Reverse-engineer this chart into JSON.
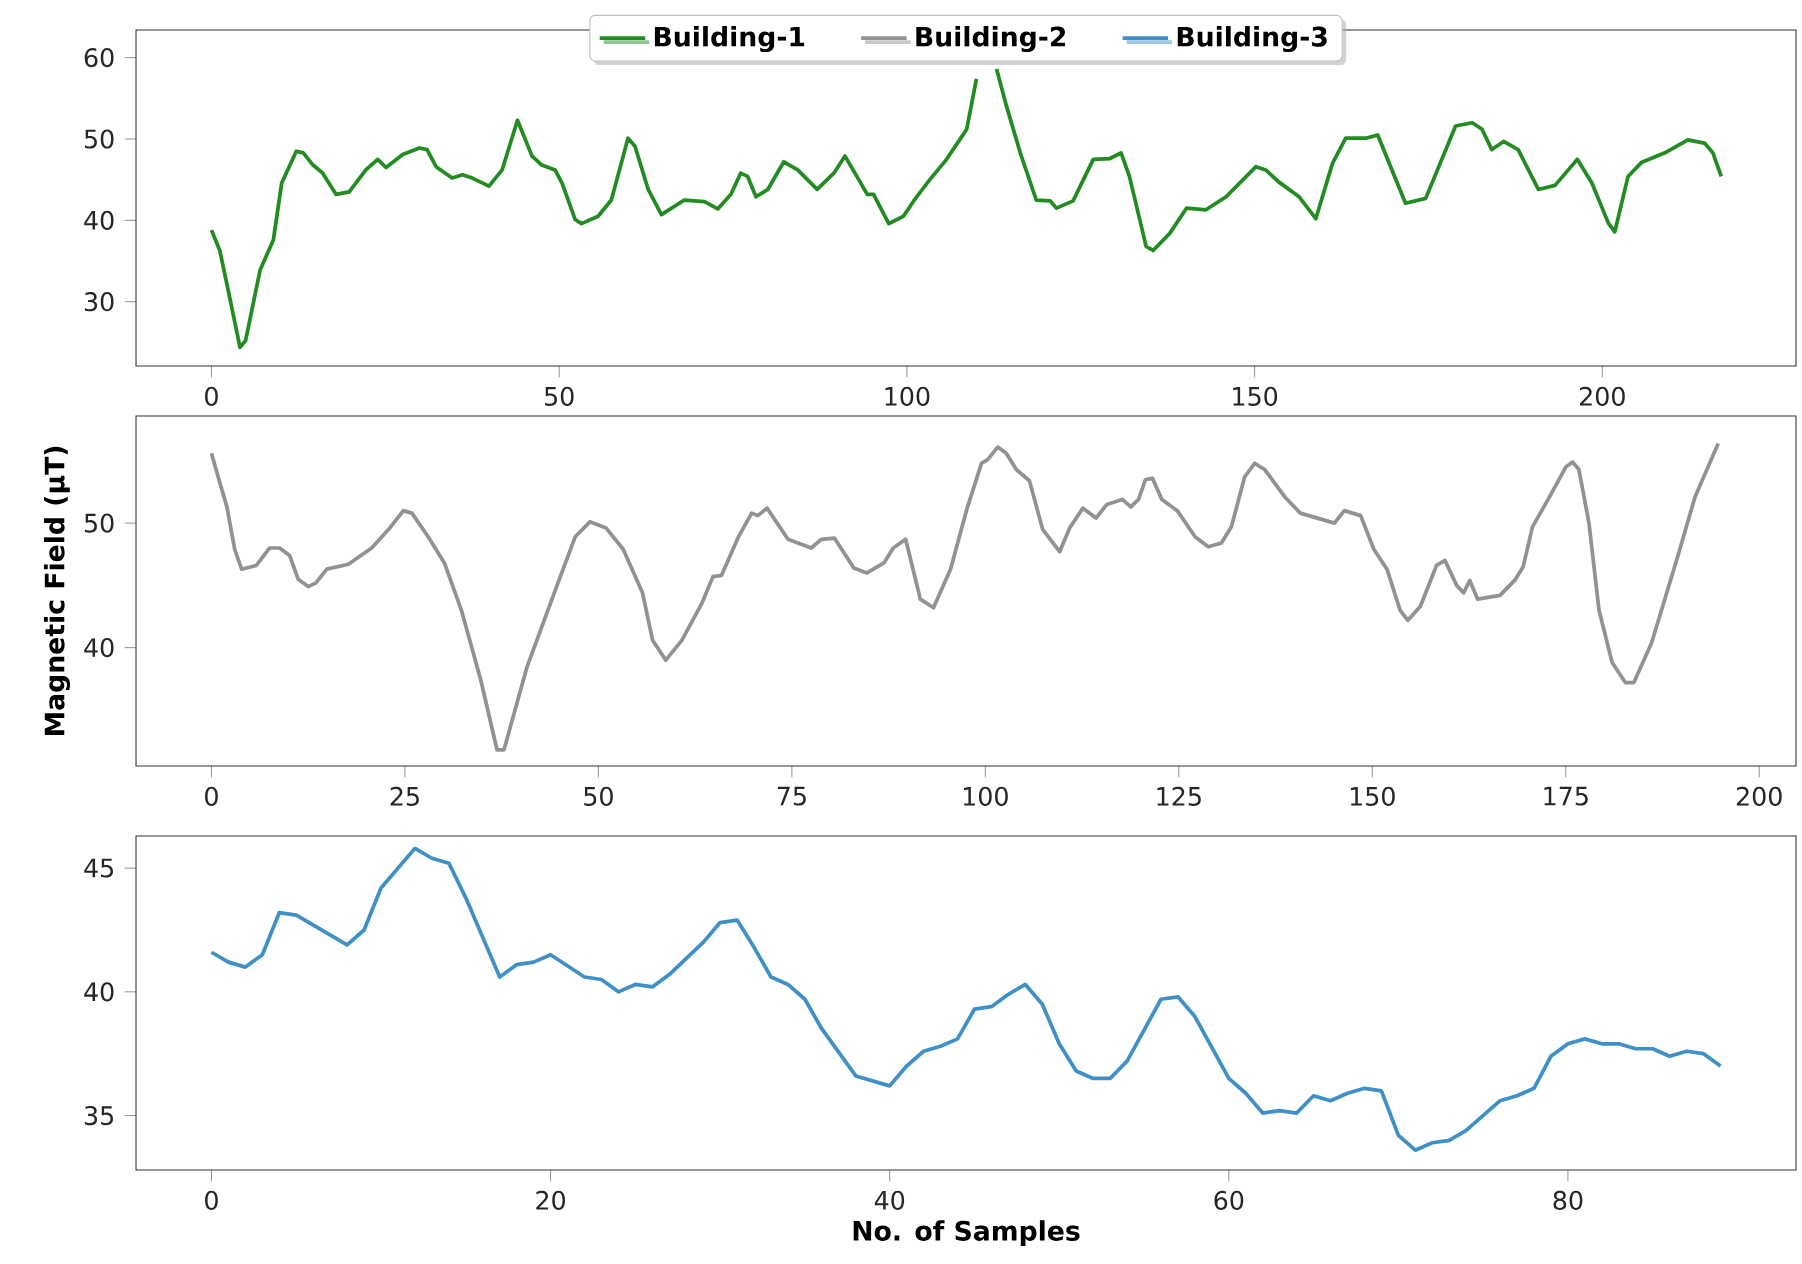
{
  "chart_data": [
    {
      "type": "line",
      "xlim": [
        -10.85,
        227.85
      ],
      "ylim": [
        22.1,
        63.4
      ],
      "xticks": [
        0,
        50,
        100,
        150,
        200
      ],
      "yticks": [
        30,
        40,
        50,
        60
      ],
      "legend": "top",
      "series": [
        {
          "name": "Building-1",
          "color": "#228b22",
          "x": [
            0,
            1.2,
            2.7,
            4.1,
            4.9,
            7,
            8.9,
            10.1,
            12.2,
            13.2,
            14.6,
            16,
            17.9,
            19.8,
            22.2,
            23.9,
            25.1,
            27.5,
            29.9,
            31,
            32.3,
            34.6,
            36.1,
            37.5,
            39.9,
            41.8,
            44,
            46.1,
            47.5,
            49.4,
            50.4,
            52.3,
            53.2,
            55.6,
            57.5,
            59.9,
            60.9,
            62.8,
            64.7,
            68,
            70.9,
            72.8,
            74.7,
            76.1,
            77.1,
            78.3,
            80,
            82.3,
            84.3,
            87.1,
            89.5,
            91.1,
            92.8,
            94.3,
            95.2,
            97.4,
            99.5,
            101.4,
            103.3,
            105.7,
            108.6,
            110,
            111.5,
            112.9,
            114.3,
            116.3,
            118.6,
            120.6,
            121.5,
            123.9,
            126.8,
            129.2,
            130.8,
            132,
            134.4,
            135.4,
            137.8,
            140.2,
            143,
            145.9,
            150.2,
            151.6,
            153.5,
            156.4,
            158.8,
            161.2,
            163.1,
            166,
            167.7,
            171.7,
            174.6,
            178.9,
            181.3,
            182.7,
            184.1,
            185.8,
            187.9,
            190.8,
            193.2,
            196.4,
            198.5,
            200.9,
            201.8,
            203.7,
            205.6,
            209,
            212.3,
            214.7,
            215.9,
            217.1
          ],
          "values": [
            38.8,
            36.3,
            30.2,
            24.4,
            25.2,
            33.9,
            37.6,
            44.6,
            48.5,
            48.3,
            46.8,
            45.8,
            43.2,
            43.5,
            46.2,
            47.5,
            46.5,
            48.1,
            48.9,
            48.7,
            46.6,
            45.2,
            45.6,
            45.2,
            44.2,
            46.2,
            52.3,
            47.9,
            46.8,
            46.2,
            44.6,
            40.1,
            39.6,
            40.5,
            42.5,
            50.1,
            49.1,
            43.8,
            40.7,
            42.5,
            42.3,
            41.4,
            43.2,
            45.8,
            45.4,
            42.9,
            43.8,
            47.2,
            46.2,
            43.8,
            45.8,
            47.9,
            45.4,
            43.2,
            43.2,
            39.6,
            40.5,
            42.9,
            45,
            47.5,
            51.2,
            57.4,
            null,
            58.6,
            54.1,
            48.3,
            42.5,
            42.4,
            41.5,
            42.4,
            47.5,
            47.6,
            48.3,
            45.4,
            36.8,
            36.3,
            38.4,
            41.5,
            41.3,
            42.9,
            46.6,
            46.2,
            44.7,
            42.9,
            40.2,
            47,
            50.1,
            50.1,
            50.5,
            42.1,
            42.7,
            51.6,
            52,
            51.2,
            48.7,
            49.7,
            48.7,
            43.8,
            44.3,
            47.5,
            44.6,
            39.6,
            38.6,
            45.4,
            47.1,
            48.3,
            49.9,
            49.5,
            48.3,
            45.4
          ]
        }
      ]
    },
    {
      "type": "line",
      "ylabel": "Magnetic Field (µT)",
      "xlim": [
        -9.75,
        204.75
      ],
      "ylim": [
        30.5,
        58.6
      ],
      "xticks": [
        0,
        25,
        50,
        75,
        100,
        125,
        150,
        175,
        200
      ],
      "yticks": [
        40,
        50
      ],
      "series": [
        {
          "name": "Building-2",
          "color": "#929292",
          "x": [
            0,
            1.1,
            2,
            3,
            3.9,
            5.8,
            7.5,
            8.8,
            10.1,
            11.2,
            12.5,
            13.5,
            14.9,
            17.7,
            20.7,
            22.9,
            24.8,
            25.9,
            28,
            30.1,
            32.3,
            34.8,
            36.9,
            37.8,
            40.8,
            44.6,
            47,
            48.9,
            51,
            53.2,
            55.7,
            57,
            58.7,
            60.8,
            63.4,
            64.8,
            65.9,
            68.1,
            69.8,
            70.6,
            71.8,
            74.5,
            77.5,
            78.8,
            80.5,
            83,
            84.7,
            86.9,
            88.1,
            89.7,
            91.6,
            93.3,
            95.5,
            97.6,
            99.5,
            100.3,
            101.6,
            102.7,
            104,
            105.7,
            107.4,
            109.6,
            110.9,
            112.6,
            114.3,
            115.7,
            117.7,
            118.8,
            119.8,
            120.7,
            121.6,
            122.8,
            124.8,
            127.1,
            128.8,
            130.5,
            131.8,
            133.5,
            134.8,
            136.1,
            138.7,
            140.7,
            142.9,
            145.1,
            146.4,
            148.5,
            150.2,
            151.9,
            153.6,
            154.6,
            156.2,
            158.3,
            159.4,
            160.9,
            161.8,
            162.6,
            163.6,
            166.5,
            168.4,
            169.5,
            170.7,
            172.9,
            175,
            175.9,
            176.7,
            178,
            179.3,
            181,
            182.7,
            183.8,
            186.1,
            189.6,
            191.7,
            194.7
          ],
          "values": [
            55.6,
            53.2,
            51.3,
            47.9,
            46.3,
            46.6,
            48,
            48,
            47.4,
            45.5,
            44.9,
            45.2,
            46.3,
            46.7,
            48,
            49.5,
            51,
            50.8,
            48.9,
            46.8,
            43,
            37.4,
            31.8,
            31.8,
            38.5,
            44.9,
            48.9,
            50.1,
            49.6,
            47.9,
            44.4,
            40.6,
            39,
            40.6,
            43.6,
            45.7,
            45.8,
            48.9,
            50.8,
            50.6,
            51.2,
            48.7,
            48,
            48.7,
            48.8,
            46.4,
            46,
            46.8,
            48,
            48.7,
            43.9,
            43.2,
            46.3,
            51.1,
            54.8,
            55.1,
            56.1,
            55.6,
            54.3,
            53.4,
            49.5,
            47.7,
            49.6,
            51.2,
            50.4,
            51.5,
            51.9,
            51.3,
            51.9,
            53.5,
            53.6,
            51.9,
            51,
            48.9,
            48.1,
            48.4,
            49.7,
            53.7,
            54.8,
            54.3,
            52.1,
            50.8,
            50.4,
            50,
            51,
            50.6,
            47.9,
            46.3,
            43,
            42.2,
            43.3,
            46.6,
            47,
            45,
            44.4,
            45.4,
            43.9,
            44.2,
            45.4,
            46.5,
            49.7,
            52.1,
            54.5,
            54.9,
            54.3,
            50,
            43,
            38.8,
            37.2,
            37.2,
            40.4,
            47.6,
            52.1,
            56.4
          ]
        }
      ]
    },
    {
      "type": "line",
      "xlabel": "No. of Samples",
      "xlim": [
        -4.45,
        93.45
      ],
      "ylim": [
        32.8,
        46.3
      ],
      "xticks": [
        0,
        20,
        40,
        60,
        80
      ],
      "yticks": [
        35,
        40,
        45
      ],
      "series": [
        {
          "name": "Building-3",
          "color": "#4090c8",
          "x": [
            0,
            1,
            2,
            3,
            4,
            5,
            8,
            9,
            10,
            12,
            13,
            14,
            15,
            17,
            18,
            19,
            20,
            22,
            23,
            24,
            25,
            26,
            27,
            29,
            30,
            31,
            32,
            33,
            34,
            35,
            36,
            38,
            40,
            41,
            42,
            43,
            44,
            45,
            46,
            47,
            48,
            49,
            50,
            51,
            52,
            53,
            54,
            56,
            57,
            58,
            60,
            61,
            62,
            63,
            64,
            65,
            66,
            67,
            68,
            69,
            70,
            71,
            72,
            73,
            74,
            75,
            76,
            77,
            78,
            79,
            80,
            81,
            82,
            83,
            84,
            85,
            86,
            87,
            88,
            89
          ],
          "values": [
            41.6,
            41.2,
            41.0,
            41.5,
            43.2,
            43.1,
            41.9,
            42.5,
            44.2,
            45.8,
            45.4,
            45.2,
            43.8,
            40.6,
            41.1,
            41.2,
            41.5,
            40.6,
            40.5,
            40.0,
            40.3,
            40.2,
            40.7,
            42.0,
            42.8,
            42.9,
            41.8,
            40.6,
            40.3,
            39.7,
            38.5,
            36.6,
            36.2,
            37.0,
            37.6,
            37.8,
            38.1,
            39.3,
            39.4,
            39.9,
            40.3,
            39.5,
            37.9,
            36.8,
            36.5,
            36.5,
            37.2,
            39.7,
            39.8,
            39.0,
            36.5,
            35.9,
            35.1,
            35.2,
            35.1,
            35.8,
            35.6,
            35.9,
            36.1,
            36.0,
            34.2,
            33.6,
            33.9,
            34.0,
            34.4,
            35.0,
            35.6,
            35.8,
            36.1,
            37.4,
            37.9,
            38.1,
            37.9,
            37.9,
            37.7,
            37.7,
            37.4,
            37.6,
            37.5,
            37.0
          ]
        }
      ]
    }
  ]
}
